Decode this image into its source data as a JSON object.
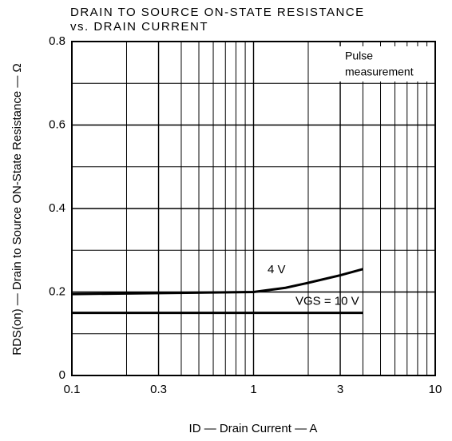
{
  "chart_data": {
    "type": "line",
    "title": [
      "DRAIN TO SOURCE ON-STATE RESISTANCE",
      "vs. DRAIN CURRENT"
    ],
    "xlabel": "ID — Drain Current — A",
    "ylabel": "RDS(on) — Drain to Source ON-State Resistance — Ω",
    "annotation": [
      "Pulse",
      "measurement"
    ],
    "xscale": "log",
    "grid": true,
    "xlim": [
      0.1,
      10
    ],
    "xticks": [
      0.1,
      0.3,
      1,
      3,
      10
    ],
    "ylim": [
      0,
      0.8
    ],
    "yticks": [
      0,
      0.2,
      0.4,
      0.6,
      0.8
    ],
    "series": [
      {
        "name": "4 V",
        "color": "#000000",
        "x": [
          0.1,
          1,
          1.5,
          2,
          3,
          4
        ],
        "values": [
          0.195,
          0.2,
          0.21,
          0.222,
          0.24,
          0.255
        ]
      },
      {
        "name": "VGS = 10 V",
        "color": "#000000",
        "x": [
          0.1,
          4
        ],
        "values": [
          0.15,
          0.15
        ]
      }
    ]
  }
}
